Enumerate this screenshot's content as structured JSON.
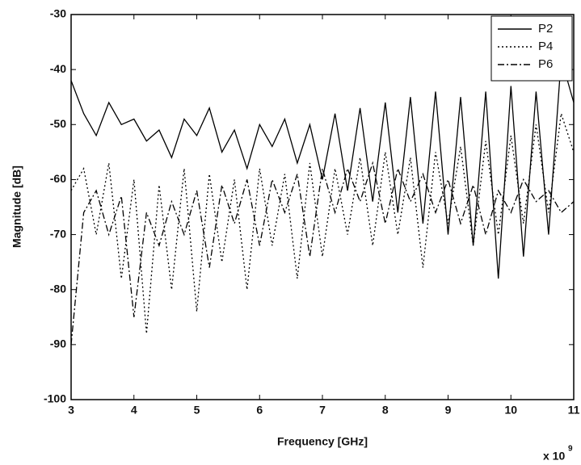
{
  "chart_data": {
    "type": "line",
    "xlabel": "Frequency [GHz]",
    "ylabel": "Magnitude [dB]",
    "x_multiplier": "x 10",
    "x_multiplier_exponent": "9",
    "x": [
      3.0,
      3.2,
      3.4,
      3.6,
      3.8,
      4.0,
      4.2,
      4.4,
      4.6,
      4.8,
      5.0,
      5.2,
      5.4,
      5.6,
      5.8,
      6.0,
      6.2,
      6.4,
      6.6,
      6.8,
      7.0,
      7.2,
      7.4,
      7.6,
      7.8,
      8.0,
      8.2,
      8.4,
      8.6,
      8.8,
      9.0,
      9.2,
      9.4,
      9.6,
      9.8,
      10.0,
      10.2,
      10.4,
      10.6,
      10.8,
      11.0
    ],
    "series": [
      {
        "name": "P2",
        "color": "#000000",
        "dash": "solid",
        "values": [
          -42,
          -48,
          -52,
          -46,
          -50,
          -49,
          -53,
          -51,
          -56,
          -49,
          -52,
          -47,
          -55,
          -51,
          -58,
          -50,
          -54,
          -49,
          -57,
          -50,
          -60,
          -48,
          -62,
          -47,
          -64,
          -46,
          -66,
          -45,
          -68,
          -44,
          -70,
          -45,
          -72,
          -44,
          -78,
          -43,
          -74,
          -44,
          -70,
          -38,
          -46
        ]
      },
      {
        "name": "P4",
        "color": "#000000",
        "dash": "dotted",
        "values": [
          -62,
          -58,
          -70,
          -57,
          -78,
          -60,
          -88,
          -61,
          -80,
          -58,
          -84,
          -59,
          -75,
          -60,
          -80,
          -58,
          -72,
          -59,
          -78,
          -57,
          -74,
          -58,
          -70,
          -56,
          -72,
          -55,
          -70,
          -56,
          -76,
          -55,
          -68,
          -54,
          -72,
          -53,
          -70,
          -52,
          -68,
          -50,
          -66,
          -48,
          -55
        ]
      },
      {
        "name": "P6",
        "color": "#000000",
        "dash": "dashdot",
        "values": [
          -90,
          -66,
          -62,
          -70,
          -63,
          -85,
          -66,
          -72,
          -64,
          -70,
          -62,
          -76,
          -61,
          -68,
          -60,
          -72,
          -60,
          -66,
          -59,
          -74,
          -58,
          -66,
          -58,
          -64,
          -57,
          -68,
          -58,
          -64,
          -59,
          -66,
          -60,
          -68,
          -61,
          -70,
          -62,
          -66,
          -60,
          -64,
          -62,
          -66,
          -64
        ]
      }
    ],
    "xlim": [
      3,
      11
    ],
    "xticks": [
      3,
      4,
      5,
      6,
      7,
      8,
      9,
      10,
      11
    ],
    "ylim": [
      -100,
      -30
    ],
    "yticks": [
      -100,
      -90,
      -80,
      -70,
      -60,
      -50,
      -40,
      -30
    ],
    "grid": false,
    "legend": "northeast"
  }
}
